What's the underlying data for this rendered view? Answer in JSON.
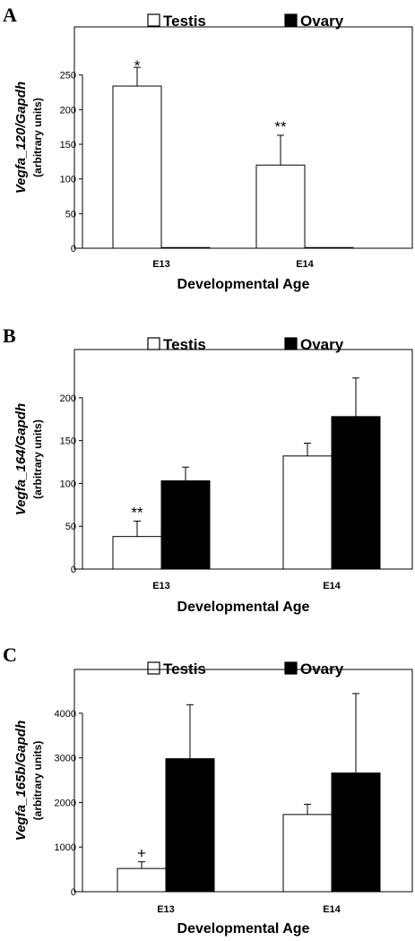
{
  "colors": {
    "testis": "#ffffff",
    "ovary": "#000000",
    "frame": "#000000"
  },
  "chart_data": [
    {
      "type": "bar",
      "panel": "A",
      "categories": [
        "E13",
        "E14"
      ],
      "series": [
        {
          "name": "Testis",
          "values": [
            234,
            120
          ],
          "errors": [
            27,
            43
          ]
        },
        {
          "name": "Ovary",
          "values": [
            1,
            1
          ],
          "errors": [
            0,
            0
          ]
        }
      ],
      "annotations": [
        {
          "category": "E13",
          "series": "Testis",
          "text": "*"
        },
        {
          "category": "E14",
          "series": "Testis",
          "text": "**"
        }
      ],
      "ylabel": "Vegfa_120/Gapdh",
      "ylabel_sub": "(arbitrary units)",
      "xlabel": "Developmental Age",
      "ylim": [
        0,
        300
      ],
      "yticks": [
        0,
        50,
        100,
        150,
        200,
        250
      ],
      "legend": "top"
    },
    {
      "type": "bar",
      "panel": "B",
      "categories": [
        "E13",
        "E14"
      ],
      "series": [
        {
          "name": "Testis",
          "values": [
            38,
            132
          ],
          "errors": [
            18,
            15
          ]
        },
        {
          "name": "Ovary",
          "values": [
            103,
            178
          ],
          "errors": [
            16,
            45
          ]
        }
      ],
      "annotations": [
        {
          "category": "E13",
          "series": "Testis",
          "text": "**"
        }
      ],
      "ylabel": "Vegfa_164/Gapdh",
      "ylabel_sub": "(arbitrary units)",
      "xlabel": "Developmental Age",
      "ylim": [
        0,
        250
      ],
      "yticks": [
        0,
        50,
        100,
        150,
        200
      ],
      "legend": "top"
    },
    {
      "type": "bar",
      "panel": "C",
      "categories": [
        "E13",
        "E14"
      ],
      "series": [
        {
          "name": "Testis",
          "values": [
            520,
            1730
          ],
          "errors": [
            150,
            230
          ]
        },
        {
          "name": "Ovary",
          "values": [
            2980,
            2660
          ],
          "errors": [
            1210,
            1780
          ]
        }
      ],
      "annotations": [
        {
          "category": "E13",
          "series": "Testis",
          "text": "+"
        }
      ],
      "ylabel": "Vegfa_165b/Gapdh",
      "ylabel_sub": "(arbitrary units)",
      "xlabel": "Developmental Age",
      "ylim": [
        0,
        5000
      ],
      "yticks": [
        0,
        1000,
        2000,
        3000,
        4000
      ],
      "legend": "top"
    }
  ]
}
